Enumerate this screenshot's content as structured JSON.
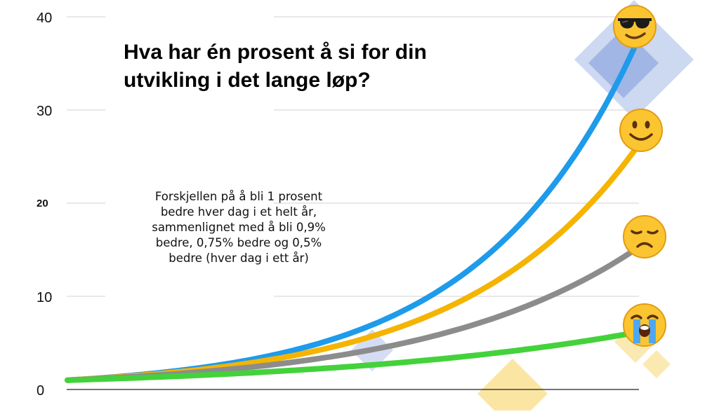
{
  "title_lines": [
    "Hva har én prosent å si for din",
    "utvikling i det lange løp?"
  ],
  "annotation_lines": [
    "Forskjellen på  å bli 1 prosent",
    "bedre hver dag i et helt år,",
    "sammenlignet med å bli 0,9%",
    "bedre, 0,75% bedre og 0,5%",
    "bedre (hver dag i ett år)"
  ],
  "chart_data": {
    "type": "line",
    "title": "Hva har én prosent å si for din utvikling i det lange løp?",
    "y_ticks": [
      {
        "value": 0,
        "label": "0"
      },
      {
        "value": 10,
        "label": "10"
      },
      {
        "value": 20,
        "label": "20"
      },
      {
        "value": 30,
        "label": "30"
      },
      {
        "value": 40,
        "label": "40"
      }
    ],
    "ylim": [
      0,
      40
    ],
    "grid": true,
    "series": [
      {
        "rate": 0.01,
        "color": "#1e9bea",
        "end_emoji": "sunglasses-face",
        "values": [
          [
            0,
            1
          ],
          [
            36.5,
            37.8
          ]
        ]
      },
      {
        "rate": 0.009,
        "color": "#f4b400",
        "end_emoji": "smiling-face",
        "values": [
          [
            0,
            1
          ],
          [
            36.5,
            26.4
          ]
        ]
      },
      {
        "rate": 0.0075,
        "color": "#8c8c8c",
        "end_emoji": "disappointed-face",
        "values": [
          [
            0,
            1
          ],
          [
            36.5,
            15.3
          ]
        ]
      },
      {
        "rate": 0.005,
        "color": "#43d23b",
        "end_emoji": "crying-face",
        "values": [
          [
            0,
            1
          ],
          [
            36.5,
            6.2
          ]
        ]
      }
    ]
  },
  "colors": {
    "decor_blue": "#6f8ed6",
    "decor_yellow": "#f7cf55",
    "emoji_face": "#fbc531",
    "emoji_edge": "#e39b12"
  }
}
